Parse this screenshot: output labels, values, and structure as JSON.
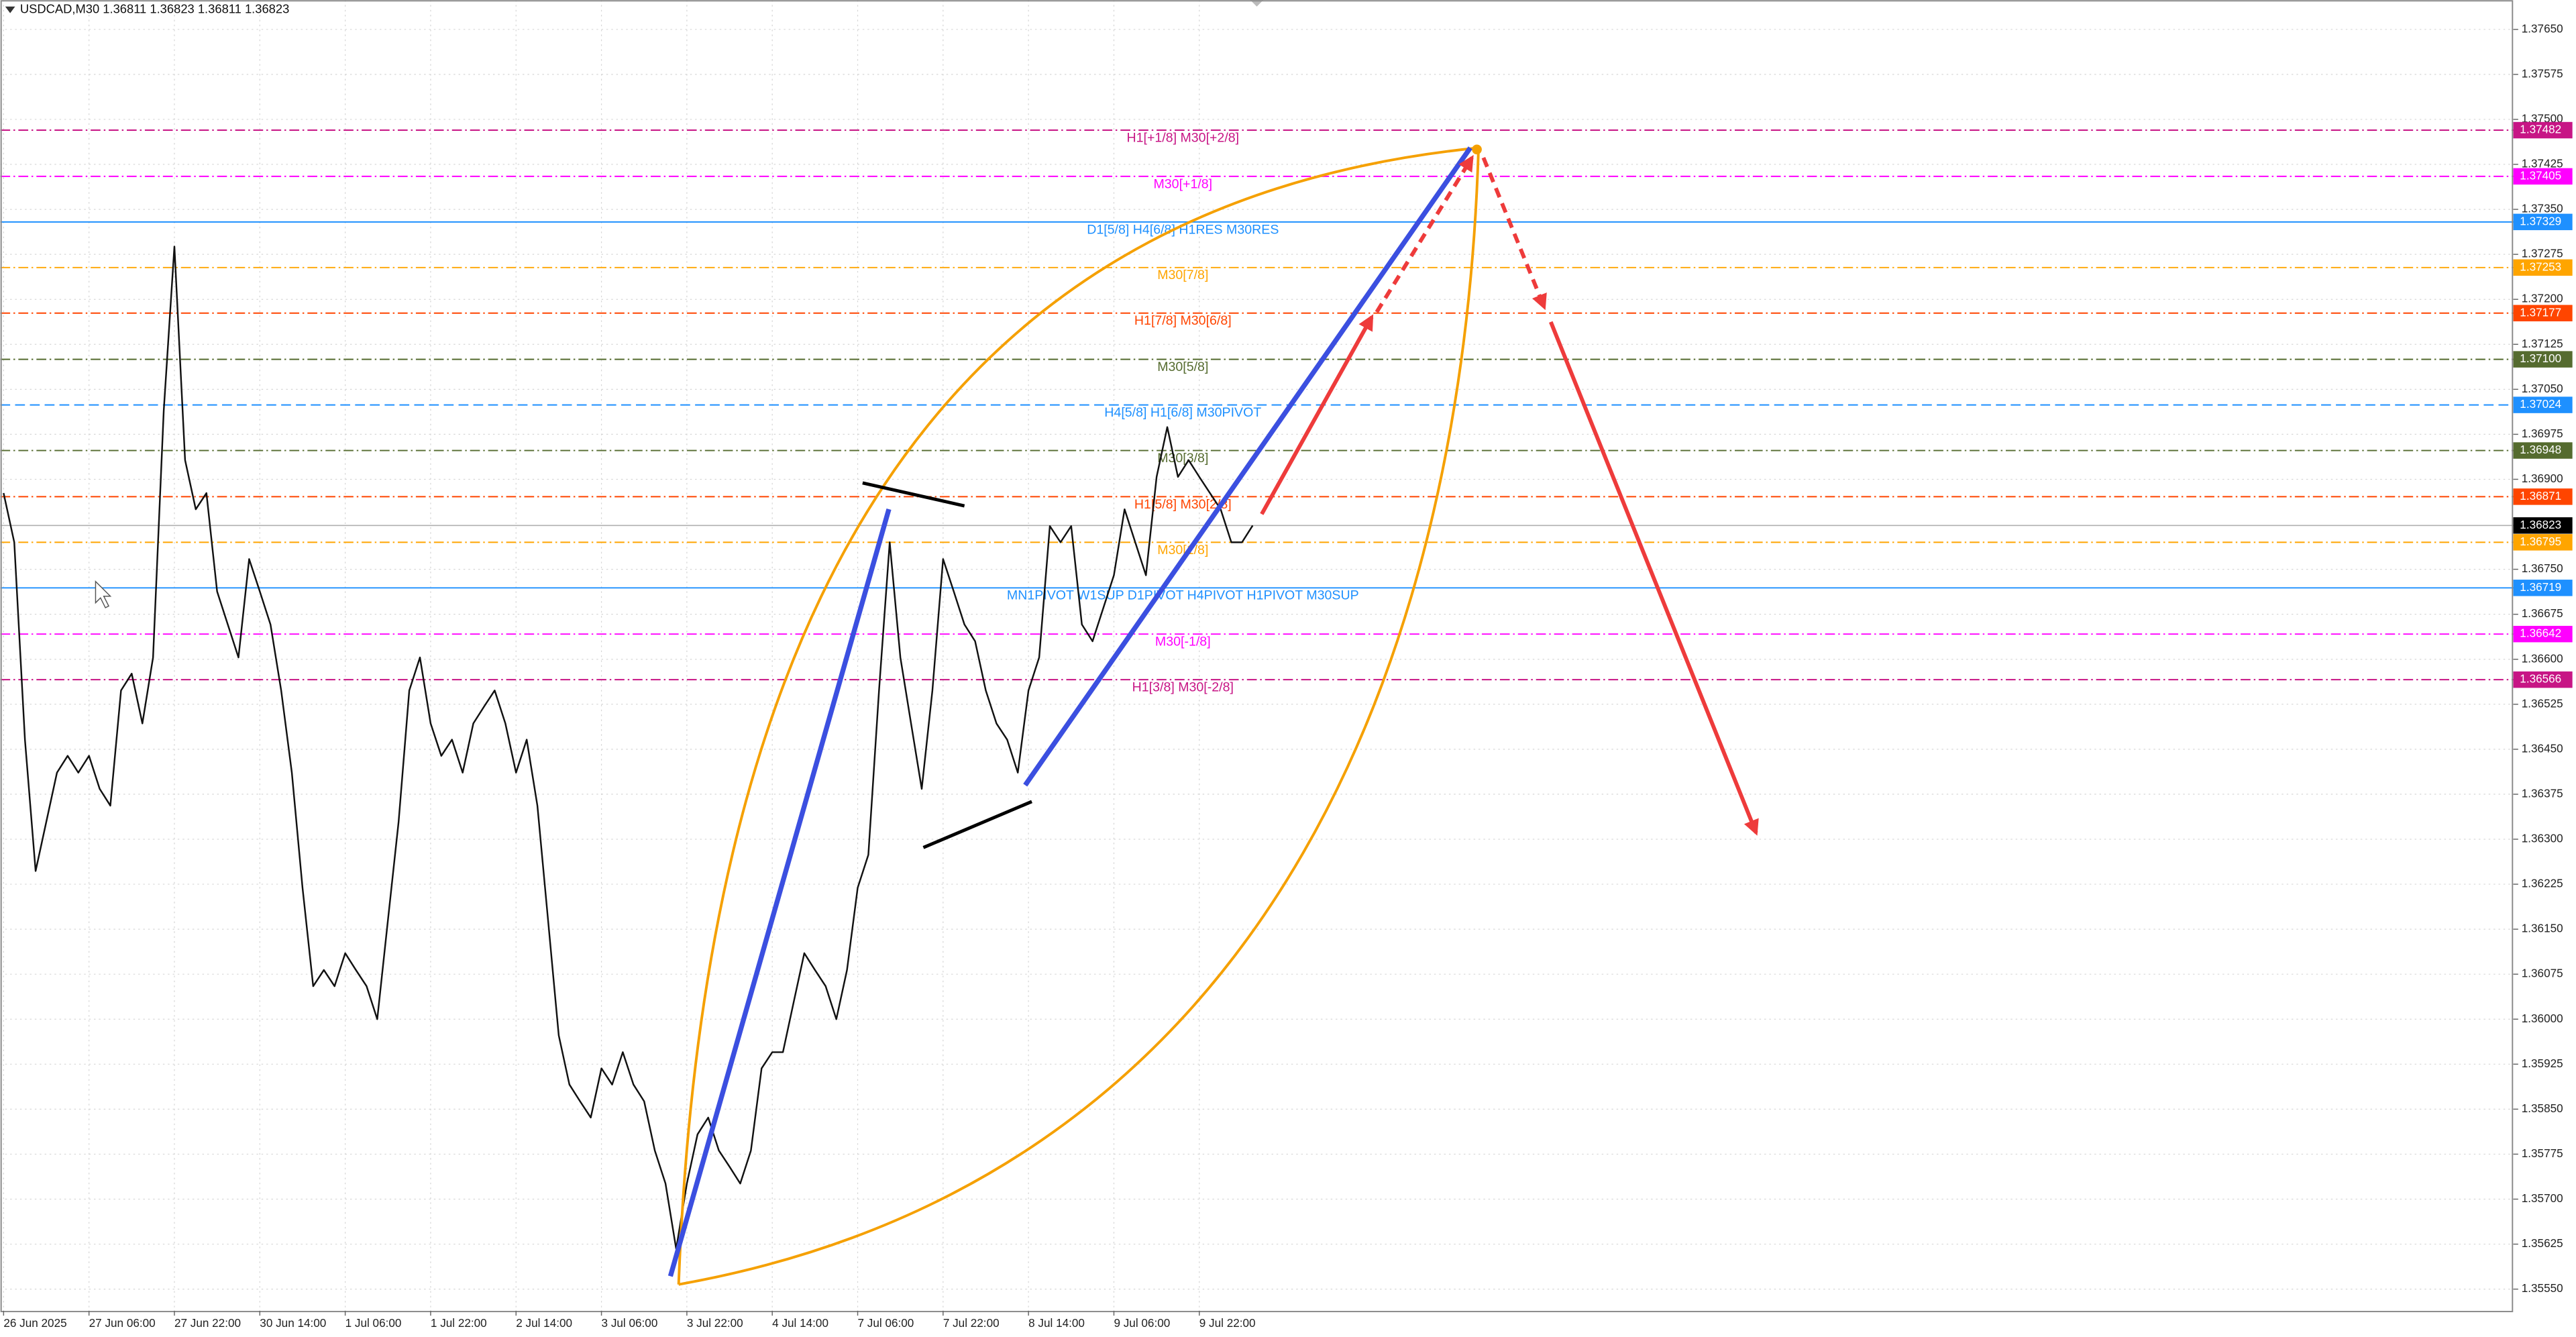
{
  "chart_data": {
    "type": "line",
    "title": "USDCAD,M30  1.36811 1.36823 1.36811 1.36823",
    "categories": [
      "26 Jun 2025",
      null,
      null,
      null,
      null,
      null,
      null,
      null,
      "27 Jun 06:00",
      null,
      null,
      null,
      null,
      null,
      null,
      null,
      "27 Jun 22:00",
      null,
      null,
      null,
      null,
      null,
      null,
      null,
      "30 Jun 14:00",
      null,
      null,
      null,
      null,
      null,
      null,
      null,
      "1 Jul 06:00",
      null,
      null,
      null,
      null,
      null,
      null,
      null,
      "1 Jul 22:00",
      null,
      null,
      null,
      null,
      null,
      null,
      null,
      "2 Jul 14:00",
      null,
      null,
      null,
      null,
      null,
      null,
      null,
      "3 Jul 06:00",
      null,
      null,
      null,
      null,
      null,
      null,
      null,
      "3 Jul 22:00",
      null,
      null,
      null,
      null,
      null,
      null,
      null,
      "4 Jul 14:00",
      null,
      null,
      null,
      null,
      null,
      null,
      null,
      "7 Jul 06:00",
      null,
      null,
      null,
      null,
      null,
      null,
      null,
      "7 Jul 22:00",
      null,
      null,
      null,
      null,
      null,
      null,
      null,
      "8 Jul 14:00",
      null,
      null,
      null,
      null,
      null,
      null,
      null,
      "9 Jul 06:00",
      null,
      null,
      null,
      null,
      null,
      null,
      null,
      "9 Jul 22:00",
      null,
      null,
      null,
      null,
      null
    ],
    "series": [
      {
        "color": "#111111",
        "values": [
          1.36877,
          1.36795,
          1.36466,
          1.36247,
          1.36329,
          1.36411,
          1.36439,
          1.36411,
          1.36439,
          1.36384,
          1.36356,
          1.36548,
          1.36576,
          1.36493,
          1.36603,
          1.37014,
          1.37288,
          1.36932,
          1.3685,
          1.36877,
          1.36713,
          1.36658,
          1.36603,
          1.36767,
          1.36713,
          1.36658,
          1.36548,
          1.36411,
          1.36219,
          1.36055,
          1.36082,
          1.36055,
          1.3611,
          1.36082,
          1.36055,
          1.36,
          1.36165,
          1.36329,
          1.36548,
          1.36603,
          1.36493,
          1.36439,
          1.36466,
          1.36411,
          1.36493,
          1.36521,
          1.36548,
          1.36493,
          1.36411,
          1.36466,
          1.36356,
          1.36165,
          1.35973,
          1.35891,
          1.35863,
          1.35836,
          1.35918,
          1.35891,
          1.35945,
          1.35891,
          1.35863,
          1.35781,
          1.35726,
          1.35617,
          1.35726,
          1.35808,
          1.35836,
          1.35781,
          1.35754,
          1.35726,
          1.35781,
          1.35918,
          1.35945,
          1.35945,
          1.36028,
          1.3611,
          1.36082,
          1.36055,
          1.36,
          1.36082,
          1.36219,
          1.36274,
          1.36548,
          1.36795,
          1.36603,
          1.36493,
          1.36384,
          1.36548,
          1.36767,
          1.36713,
          1.36658,
          1.3663,
          1.36548,
          1.36493,
          1.36466,
          1.36411,
          1.36548,
          1.36603,
          1.36822,
          1.36795,
          1.36822,
          1.36658,
          1.3663,
          1.36685,
          1.3674,
          1.3685,
          1.36795,
          1.3674,
          1.36904,
          1.36987,
          1.36904,
          1.36932,
          1.36904,
          1.36877,
          1.3685,
          1.36795,
          1.36795,
          1.36823
        ]
      }
    ],
    "ylim": [
      1.35514,
      1.37699
    ],
    "yticks": [
      {
        "value": 1.3765,
        "label": "1.37650"
      },
      {
        "value": 1.37575,
        "label": "1.37575"
      },
      {
        "value": 1.375,
        "label": "1.37500"
      },
      {
        "value": 1.37425,
        "label": "1.37425"
      },
      {
        "value": 1.3735,
        "label": "1.37350"
      },
      {
        "value": 1.37275,
        "label": "1.37275"
      },
      {
        "value": 1.372,
        "label": "1.37200"
      },
      {
        "value": 1.37125,
        "label": "1.37125"
      },
      {
        "value": 1.3705,
        "label": "1.37050"
      },
      {
        "value": 1.36975,
        "label": "1.36975"
      },
      {
        "value": 1.369,
        "label": "1.36900"
      },
      {
        "value": 1.3675,
        "label": "1.36750"
      },
      {
        "value": 1.36675,
        "label": "1.36675"
      },
      {
        "value": 1.366,
        "label": "1.36600"
      },
      {
        "value": 1.36525,
        "label": "1.36525"
      },
      {
        "value": 1.3645,
        "label": "1.36450"
      },
      {
        "value": 1.36375,
        "label": "1.36375"
      },
      {
        "value": 1.363,
        "label": "1.36300"
      },
      {
        "value": 1.36225,
        "label": "1.36225"
      },
      {
        "value": 1.3615,
        "label": "1.36150"
      },
      {
        "value": 1.36075,
        "label": "1.36075"
      },
      {
        "value": 1.36,
        "label": "1.36000"
      },
      {
        "value": 1.35925,
        "label": "1.35925"
      },
      {
        "value": 1.3585,
        "label": "1.35850"
      },
      {
        "value": 1.35775,
        "label": "1.35775"
      },
      {
        "value": 1.357,
        "label": "1.35700"
      },
      {
        "value": 1.35625,
        "label": "1.35625"
      },
      {
        "value": 1.3555,
        "label": "1.35550"
      }
    ],
    "grid": true,
    "last_price": {
      "value": 1.36823,
      "label": "1.36823",
      "color": "#000000"
    },
    "levels": [
      {
        "label": "H1[+1/8] M30[+2/8]",
        "price": 1.37482,
        "price_label": "1.37482",
        "color": "#c71585",
        "line_style": "dashdot"
      },
      {
        "label": "M30[+1/8]",
        "price": 1.37405,
        "price_label": "1.37405",
        "color": "#ff00ff",
        "line_style": "dashdot"
      },
      {
        "label": "D1[5/8] H4[6/8] H1RES M30RES",
        "price": 1.37329,
        "price_label": "1.37329",
        "color": "#1e90ff",
        "line_style": "solid"
      },
      {
        "label": "M30[7/8]",
        "price": 1.37253,
        "price_label": "1.37253",
        "color": "#ffa500",
        "line_style": "dashdot"
      },
      {
        "label": "H1[7/8] M30[6/8]",
        "price": 1.37177,
        "price_label": "1.37177",
        "color": "#ff4500",
        "line_style": "dashdot"
      },
      {
        "label": "M30[5/8]",
        "price": 1.371,
        "price_label": "1.37100",
        "color": "#556b2f",
        "line_style": "dashdot"
      },
      {
        "label": "H4[5/8] H1[6/8] M30PIVOT",
        "price": 1.37024,
        "price_label": "1.37024",
        "color": "#1e90ff",
        "line_style": "dashed"
      },
      {
        "label": "M30[3/8]",
        "price": 1.36948,
        "price_label": "1.36948",
        "color": "#556b2f",
        "line_style": "dashdot"
      },
      {
        "label": "H1[5/8] M30[2/8]",
        "price": 1.36871,
        "price_label": "1.36871",
        "color": "#ff4500",
        "line_style": "dashdot"
      },
      {
        "label": "M30[1/8]",
        "price": 1.36795,
        "price_label": "1.36795",
        "color": "#ffa500",
        "line_style": "dashdot"
      },
      {
        "label": "MN1PIVOT W1SUP D1PIVOT H4PIVOT H1PIVOT M30SUP",
        "price": 1.36719,
        "price_label": "1.36719",
        "color": "#1e90ff",
        "line_style": "solid"
      },
      {
        "label": "M30[-1/8]",
        "price": 1.36642,
        "price_label": "1.36642",
        "color": "#ff00ff",
        "line_style": "dashdot"
      },
      {
        "label": "H1[3/8] M30[-2/8]",
        "price": 1.36566,
        "price_label": "1.36566",
        "color": "#c71585",
        "line_style": "dashdot"
      }
    ]
  }
}
